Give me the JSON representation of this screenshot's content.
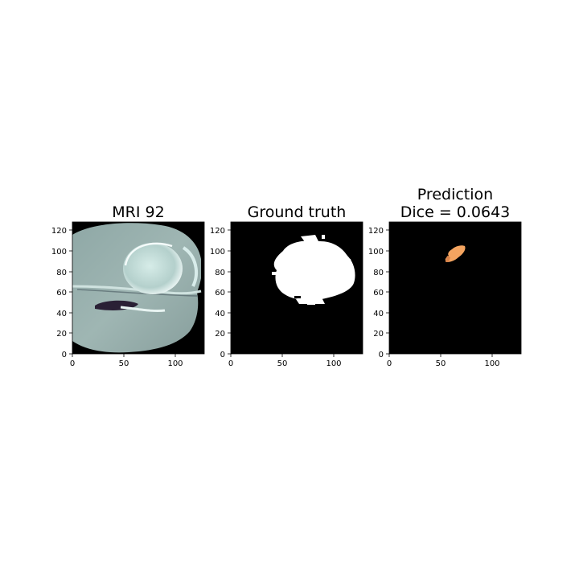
{
  "panels": [
    {
      "title_lines": [
        "MRI 92"
      ],
      "content": "mri-slice",
      "xticks": [
        "0",
        "50",
        "100"
      ],
      "yticks": [
        "0",
        "20",
        "40",
        "60",
        "80",
        "100",
        "120"
      ]
    },
    {
      "title_lines": [
        "Ground truth"
      ],
      "content": "ground-truth-mask",
      "xticks": [
        "0",
        "50",
        "100"
      ],
      "yticks": [
        "0",
        "20",
        "40",
        "60",
        "80",
        "100",
        "120"
      ]
    },
    {
      "title_lines": [
        "Prediction",
        "Dice = 0.0643"
      ],
      "content": "prediction-mask",
      "xticks": [
        "0",
        "50",
        "100"
      ],
      "yticks": [
        "0",
        "20",
        "40",
        "60",
        "80",
        "100",
        "120"
      ]
    }
  ],
  "colors": {
    "mask_background": "#000000",
    "ground_truth_fill": "#ffffff",
    "prediction_fill": "#f4a460"
  }
}
